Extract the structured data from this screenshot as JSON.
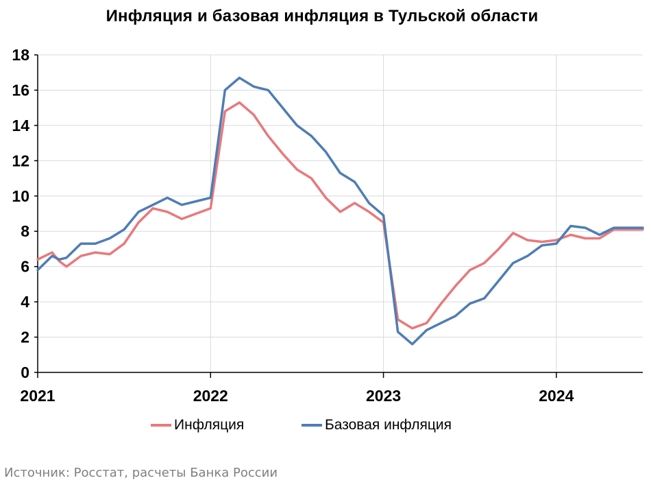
{
  "chart_data": {
    "type": "line",
    "title": "Инфляция и базовая инфляция в Тульской области",
    "xlabel": "",
    "ylabel": "",
    "ylim": [
      0,
      18
    ],
    "yticks": [
      0,
      2,
      4,
      6,
      8,
      10,
      12,
      14,
      16,
      18
    ],
    "xlim": [
      0,
      35
    ],
    "xticks": [
      {
        "label": "2021",
        "x": 0
      },
      {
        "label": "2022",
        "x": 12
      },
      {
        "label": "2023",
        "x": 24
      },
      {
        "label": "2024",
        "x": 36
      }
    ],
    "grid": {
      "horizontal": true,
      "vertical": true
    },
    "legend": "bottom",
    "series": [
      {
        "name": "Инфляция",
        "color": "#e8797c",
        "x": [
          0,
          0.5,
          1,
          1.5,
          2,
          3,
          4,
          5,
          6,
          7,
          8,
          9,
          10,
          11,
          12,
          13,
          14,
          15,
          16,
          17,
          18,
          19,
          20,
          21,
          22,
          23,
          24,
          25,
          26,
          27,
          28,
          29,
          30,
          31,
          32,
          33,
          34,
          35,
          36,
          37,
          38,
          39,
          40,
          41,
          42
        ],
        "values": [
          6.4,
          6.6,
          6.8,
          6.3,
          6.0,
          6.6,
          6.8,
          6.7,
          7.3,
          8.5,
          9.3,
          9.1,
          8.7,
          9.0,
          9.3,
          14.8,
          15.3,
          14.6,
          13.4,
          12.4,
          11.5,
          11.0,
          9.9,
          9.1,
          9.6,
          9.1,
          8.5,
          3.0,
          2.5,
          2.8,
          3.9,
          4.9,
          5.8,
          6.2,
          7.0,
          7.9,
          7.5,
          7.4,
          7.5,
          7.8,
          7.6,
          7.6,
          8.1,
          8.1,
          8.1
        ]
      },
      {
        "name": "Базовая инфляция",
        "color": "#4e7db5",
        "x": [
          0,
          0.5,
          1,
          1.5,
          2,
          3,
          4,
          5,
          6,
          7,
          8,
          9,
          10,
          11,
          12,
          13,
          14,
          15,
          16,
          17,
          18,
          19,
          20,
          21,
          22,
          23,
          24,
          25,
          26,
          27,
          28,
          29,
          30,
          31,
          32,
          33,
          34,
          35,
          36,
          37,
          38,
          39,
          40,
          41,
          42
        ],
        "values": [
          5.8,
          6.2,
          6.6,
          6.4,
          6.5,
          7.3,
          7.3,
          7.6,
          8.1,
          9.1,
          9.5,
          9.9,
          9.5,
          9.7,
          9.9,
          16.0,
          16.7,
          16.2,
          16.0,
          15.0,
          14.0,
          13.4,
          12.5,
          11.3,
          10.8,
          9.6,
          8.9,
          2.3,
          1.6,
          2.4,
          2.8,
          3.2,
          3.9,
          4.2,
          5.2,
          6.2,
          6.6,
          7.2,
          7.3,
          8.3,
          8.2,
          7.8,
          8.2,
          8.2,
          8.2
        ]
      }
    ]
  },
  "legend_items": [
    {
      "label": "Инфляция",
      "color": "#e8797c"
    },
    {
      "label": "Базовая инфляция",
      "color": "#4e7db5"
    }
  ],
  "source_note": "Источник: Росстат, расчеты Банка России"
}
